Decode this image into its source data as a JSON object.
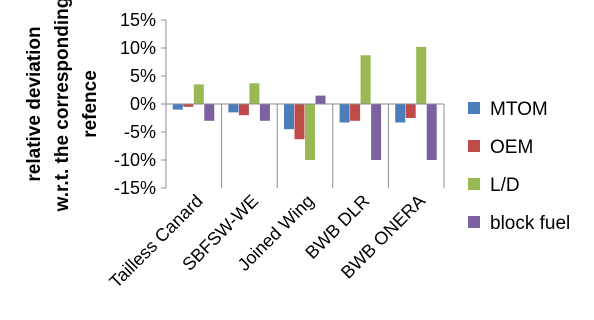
{
  "chart_data": {
    "type": "bar",
    "title": "",
    "xlabel": "",
    "ylabel_lines": [
      "relative deviation",
      "w.r.t. the corresponding",
      "refence"
    ],
    "categories": [
      "Tailless Canard",
      "SBFSW-WE",
      "Joined Wing",
      "BWB DLR",
      "BWB ONERA"
    ],
    "ylim": [
      -0.15,
      0.15
    ],
    "yticks": [
      0.15,
      0.1,
      0.05,
      0.0,
      -0.05,
      -0.1,
      -0.15
    ],
    "ytick_labels": [
      "15%",
      "10%",
      "5%",
      "0%",
      "-5%",
      "-10%",
      "-15%"
    ],
    "grid": false,
    "legend_position": "right",
    "series": [
      {
        "name": "MTOM",
        "color": "#4a7ebb",
        "values": [
          -0.01,
          -0.015,
          -0.045,
          -0.033,
          -0.033
        ]
      },
      {
        "name": "OEM",
        "color": "#be4b48",
        "values": [
          -0.005,
          -0.02,
          -0.063,
          -0.03,
          -0.025
        ]
      },
      {
        "name": "L/D",
        "color": "#98b954",
        "values": [
          0.035,
          0.037,
          -0.1,
          0.087,
          0.102
        ]
      },
      {
        "name": "block fuel",
        "color": "#7d60a0",
        "values": [
          -0.03,
          -0.03,
          0.015,
          -0.1,
          -0.1
        ]
      }
    ]
  }
}
